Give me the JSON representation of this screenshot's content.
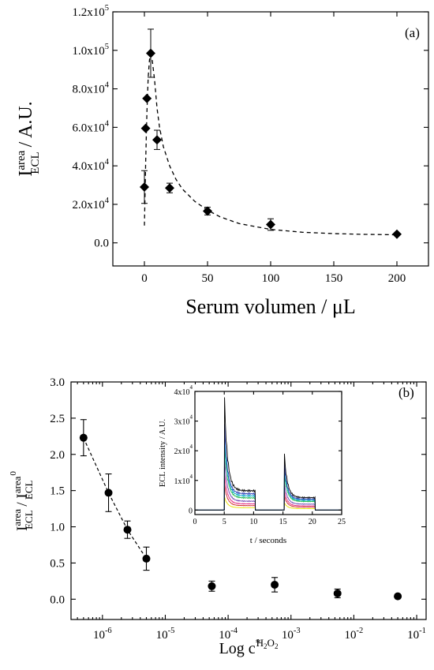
{
  "chart_data": [
    {
      "id": "a",
      "type": "scatter",
      "panel_label": "(a)",
      "xlabel": "Serum volumen / μL",
      "ylabel_main": "I",
      "ylabel_sup": "area",
      "ylabel_sub": "ECL",
      "ylabel_tail": " / A.U.",
      "xlim": [
        -25,
        225
      ],
      "ylim": [
        -12000,
        120000
      ],
      "xticks": [
        0,
        50,
        100,
        150,
        200
      ],
      "yticks": [
        {
          "value": 0,
          "mant": "0.0",
          "exp": ""
        },
        {
          "value": 20000,
          "mant": "2.0x10",
          "exp": "4"
        },
        {
          "value": 40000,
          "mant": "4.0x10",
          "exp": "4"
        },
        {
          "value": 60000,
          "mant": "6.0x10",
          "exp": "4"
        },
        {
          "value": 80000,
          "mant": "8.0x10",
          "exp": "4"
        },
        {
          "value": 100000,
          "mant": "1.0x10",
          "exp": "5"
        },
        {
          "value": 120000,
          "mant": "1.2x10",
          "exp": "5"
        }
      ],
      "marker": "diamond",
      "points": [
        {
          "x": 0,
          "y": 29000,
          "err": 8500
        },
        {
          "x": 1,
          "y": 59500,
          "err": 0
        },
        {
          "x": 2,
          "y": 75000,
          "err": 0
        },
        {
          "x": 5,
          "y": 98500,
          "err": 12500
        },
        {
          "x": 10,
          "y": 53500,
          "err": 5000
        },
        {
          "x": 20,
          "y": 28500,
          "err": 2500
        },
        {
          "x": 50,
          "y": 16500,
          "err": 2000
        },
        {
          "x": 100,
          "y": 9500,
          "err": 3000
        },
        {
          "x": 200,
          "y": 4500,
          "err": 500
        }
      ],
      "fit": {
        "style": "dashed",
        "x": [
          0,
          0.5,
          1,
          2,
          3,
          4,
          5,
          6,
          8,
          10,
          12,
          15,
          20,
          25,
          30,
          40,
          50,
          60,
          75,
          100,
          125,
          150,
          175,
          200
        ],
        "y": [
          9000,
          25000,
          42000,
          68000,
          86000,
          95000,
          98000,
          96000,
          85000,
          70000,
          60000,
          50000,
          40000,
          33000,
          28000,
          21500,
          17000,
          13500,
          10000,
          7000,
          5500,
          4800,
          4400,
          4200
        ]
      }
    },
    {
      "id": "b",
      "type": "scatter",
      "panel_label": "(b)",
      "xlabel_main": "Log c",
      "xlabel_sup": "*",
      "xlabel_sub": "H2O2",
      "ylabel_main": "I",
      "ylabel_sup": "area",
      "ylabel_sub": "ECL",
      "ylabel_sep": " / I",
      "ylabel_sup2": "area",
      "ylabel_sup2b": "0",
      "ylabel_sub2": "ECL",
      "xscale": "log",
      "xlim_log10": [
        -6.5,
        -0.85
      ],
      "ylim": [
        -0.28,
        3.0
      ],
      "xticks": [
        {
          "log": -6,
          "label": "10",
          "exp": "-6"
        },
        {
          "log": -5,
          "label": "10",
          "exp": "-5"
        },
        {
          "log": -4,
          "label": "10",
          "exp": "-4"
        },
        {
          "log": -3,
          "label": "10",
          "exp": "-3"
        },
        {
          "log": -2,
          "label": "10",
          "exp": "-2"
        },
        {
          "log": -1,
          "label": "10",
          "exp": "-1"
        }
      ],
      "yticks": [
        "0.0",
        "0.5",
        "1.0",
        "1.5",
        "2.0",
        "2.5",
        "3.0"
      ],
      "marker": "circle",
      "points": [
        {
          "x": 5e-07,
          "y": 2.23,
          "err": 0.25
        },
        {
          "x": 1.25e-06,
          "y": 1.47,
          "err": 0.26
        },
        {
          "x": 2.5e-06,
          "y": 0.96,
          "err": 0.12
        },
        {
          "x": 5e-06,
          "y": 0.56,
          "err": 0.16
        },
        {
          "x": 5.5e-05,
          "y": 0.18,
          "err": 0.07
        },
        {
          "x": 0.00055,
          "y": 0.2,
          "err": 0.1
        },
        {
          "x": 0.0055,
          "y": 0.08,
          "err": 0.06
        },
        {
          "x": 0.05,
          "y": 0.04,
          "err": 0
        }
      ],
      "fit": {
        "style": "dashed",
        "x": [
          5e-07,
          1.25e-06,
          2.5e-06,
          5e-06
        ],
        "y": [
          2.23,
          1.47,
          0.96,
          0.56
        ]
      }
    },
    {
      "id": "b-inset",
      "type": "line",
      "xlabel": "t / seconds",
      "ylabel": "ECL intensity / A.U.",
      "xlim": [
        0,
        25
      ],
      "ylim": [
        -1500,
        40000
      ],
      "xticks": [
        0,
        5,
        10,
        15,
        20,
        25
      ],
      "yticks": [
        {
          "value": 0,
          "mant": "0",
          "exp": ""
        },
        {
          "value": 10000,
          "mant": "1x10",
          "exp": "4"
        },
        {
          "value": 20000,
          "mant": "2x10",
          "exp": "4"
        },
        {
          "value": 30000,
          "mant": "3x10",
          "exp": "4"
        },
        {
          "value": 40000,
          "mant": "4x10",
          "exp": "4"
        }
      ],
      "pulses": [
        {
          "start": 5,
          "end": 10.3
        },
        {
          "start": 15.2,
          "end": 20.5
        }
      ],
      "series": [
        {
          "color": "#000000",
          "peak1": 38000,
          "plateau1": 6500,
          "peak2": 19000,
          "plateau2": 4200
        },
        {
          "color": "#2c3fb8",
          "peak1": 29000,
          "plateau1": 5500,
          "peak2": 15500,
          "plateau2": 3700
        },
        {
          "color": "#00a8c8",
          "peak1": 26000,
          "plateau1": 4800,
          "peak2": 14000,
          "plateau2": 3300
        },
        {
          "color": "#18b848",
          "peak1": 23000,
          "plateau1": 4100,
          "peak2": 12500,
          "plateau2": 2900
        },
        {
          "color": "#6a3fb0",
          "peak1": 17000,
          "plateau1": 3000,
          "peak2": 9000,
          "plateau2": 2000
        },
        {
          "color": "#e0207c",
          "peak1": 12000,
          "plateau1": 2100,
          "peak2": 6500,
          "plateau2": 1400
        },
        {
          "color": "#d02828",
          "peak1": 8500,
          "plateau1": 1500,
          "peak2": 4800,
          "plateau2": 1000
        },
        {
          "color": "#e8e000",
          "peak1": 4500,
          "plateau1": 800,
          "peak2": 2500,
          "plateau2": 500
        }
      ]
    }
  ]
}
